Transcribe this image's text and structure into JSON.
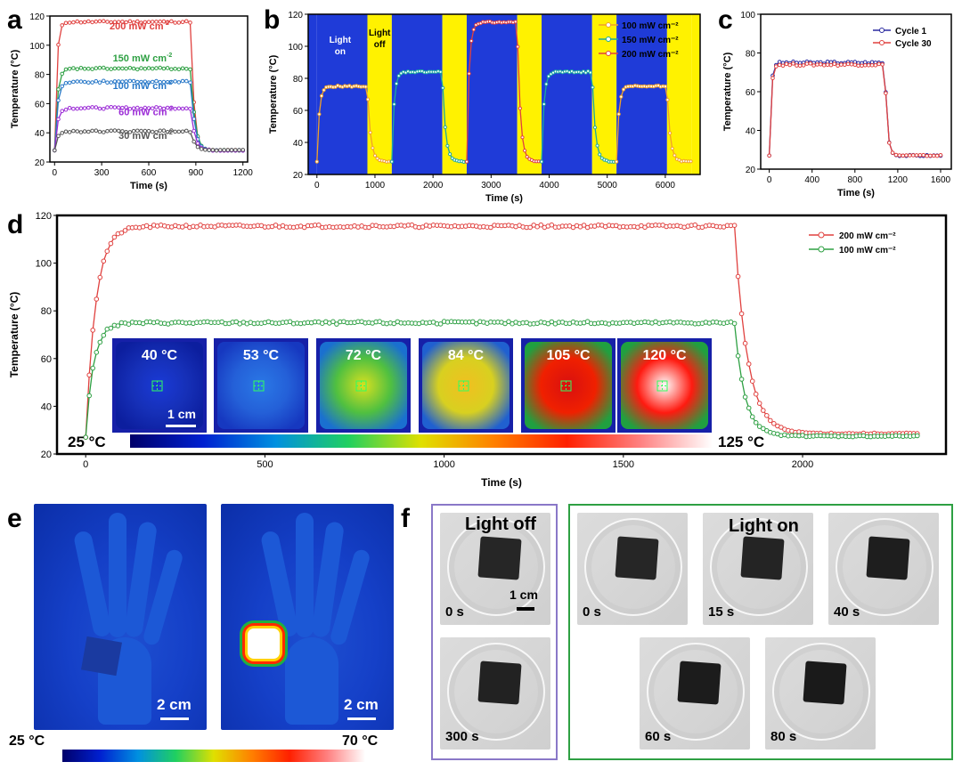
{
  "panels": {
    "a": "a",
    "b": "b",
    "c": "c",
    "d": "d",
    "e": "e",
    "f": "f"
  },
  "colors": {
    "red": "#e0413f",
    "green": "#2ea043",
    "blue": "#2878c8",
    "purple": "#9b2bd6",
    "gray": "#555555",
    "orange": "#f0a02a",
    "teal": "#1aa9a0",
    "navy": "#2a2aa0",
    "bg_blue": "#1f3bd8",
    "bg_yellow": "#fff200",
    "frame_purple": "#8a78c8",
    "frame_green": "#2ea043"
  },
  "chart_data": [
    {
      "id": "a",
      "type": "line",
      "xlabel": "Time (s)",
      "ylabel": "Temperature (°C)",
      "xlim": [
        -30,
        1230
      ],
      "ylim": [
        20,
        120
      ],
      "xticks": [
        0,
        300,
        600,
        900,
        1200
      ],
      "yticks": [
        20,
        40,
        60,
        80,
        100,
        120
      ],
      "series": [
        {
          "name": "200 mW cm⁻²",
          "color": "#e0413f",
          "plateau": 116,
          "start": 28,
          "end": 28
        },
        {
          "name": "150 mW cm⁻²",
          "color": "#2ea043",
          "plateau": 84,
          "start": 28,
          "end": 28
        },
        {
          "name": "100 mW cm⁻²",
          "color": "#2878c8",
          "plateau": 75,
          "start": 28,
          "end": 28
        },
        {
          "name": "60 mW cm⁻²",
          "color": "#9b2bd6",
          "plateau": 57,
          "start": 28,
          "end": 28
        },
        {
          "name": "30 mW cm⁻²",
          "color": "#555555",
          "plateau": 41,
          "start": 28,
          "end": 28
        }
      ],
      "off_time": 870,
      "labels": [
        {
          "text": "200 mW cm",
          "sup": "-2",
          "color": "#e0413f",
          "x": 540,
          "y": 111
        },
        {
          "text": "150 mW cm",
          "sup": "-2",
          "color": "#2ea043",
          "x": 560,
          "y": 89
        },
        {
          "text": "100 mW cm",
          "sup": "-2",
          "color": "#2878c8",
          "x": 560,
          "y": 70
        },
        {
          "text": "60 mW cm",
          "sup": "-2",
          "color": "#9b2bd6",
          "x": 580,
          "y": 52
        },
        {
          "text": "30 mW cm",
          "sup": "-2",
          "color": "#555555",
          "x": 580,
          "y": 36
        }
      ]
    },
    {
      "id": "b",
      "type": "line",
      "xlabel": "Time (s)",
      "ylabel": "Temperature (°C)",
      "xlim": [
        -150,
        6600
      ],
      "ylim": [
        20,
        120
      ],
      "xticks": [
        0,
        1000,
        2000,
        3000,
        4000,
        5000,
        6000
      ],
      "yticks": [
        20,
        40,
        60,
        80,
        100,
        120
      ],
      "cycles": [
        {
          "on": [
            0,
            870
          ],
          "off": [
            870,
            1290
          ],
          "peak": 75,
          "color": "#f0a02a"
        },
        {
          "on": [
            1290,
            2160
          ],
          "off": [
            2160,
            2580
          ],
          "peak": 84,
          "color": "#1aa9a0"
        },
        {
          "on": [
            2580,
            3450
          ],
          "off": [
            3450,
            3870
          ],
          "peak": 115,
          "color": "#e0413f"
        },
        {
          "on": [
            3870,
            4740
          ],
          "off": [
            4740,
            5160
          ],
          "peak": 84,
          "color": "#1aa9a0"
        },
        {
          "on": [
            5160,
            6030
          ],
          "off": [
            6030,
            6450
          ],
          "peak": 75,
          "color": "#f0a02a"
        }
      ],
      "light_on": "Light on",
      "light_off": "Light off",
      "legend": [
        "100 mW cm⁻²",
        "150 mW cm⁻²",
        "200 mW cm⁻²"
      ],
      "legend_colors": [
        "#f0a02a",
        "#1aa9a0",
        "#e0413f"
      ]
    },
    {
      "id": "c",
      "type": "line",
      "xlabel": "Time (s)",
      "ylabel": "Temperature (°C)",
      "xlim": [
        -80,
        1700
      ],
      "ylim": [
        20,
        100
      ],
      "xticks": [
        0,
        400,
        800,
        1200,
        1600
      ],
      "yticks": [
        20,
        40,
        60,
        80,
        100
      ],
      "series": [
        {
          "name": "Cycle 1",
          "color": "#2a2aa0",
          "plateau": 75
        },
        {
          "name": "Cycle 30",
          "color": "#e0413f",
          "plateau": 74
        }
      ],
      "off_time": 1080
    },
    {
      "id": "d",
      "type": "line",
      "xlabel": "Time (s)",
      "ylabel": "Temperature (°C)",
      "xlim": [
        -80,
        2400
      ],
      "ylim": [
        20,
        120
      ],
      "xticks": [
        0,
        500,
        1000,
        1500,
        2000
      ],
      "yticks": [
        20,
        40,
        60,
        80,
        100,
        120
      ],
      "series": [
        {
          "name": "200 mW cm⁻²",
          "color": "#e0413f",
          "plateau": 115.5
        },
        {
          "name": "100 mW cm⁻²",
          "color": "#2ea043",
          "plateau": 75
        }
      ],
      "off_time": 1810,
      "thermal_labels": [
        "40 °C",
        "53 °C",
        "72 °C",
        "84 °C",
        "105 °C",
        "120 °C"
      ],
      "scale_bar": "1 cm",
      "colorbar_min": "25 °C",
      "colorbar_max": "125 °C"
    }
  ],
  "panel_e": {
    "scale_bar": "2 cm",
    "colorbar_min": "25 °C",
    "colorbar_max": "70 °C"
  },
  "panel_f": {
    "light_off": "Light off",
    "light_on": "Light on",
    "scale_bar": "1 cm",
    "times_off": [
      "0 s",
      "300 s"
    ],
    "times_on": [
      "0 s",
      "15 s",
      "40 s",
      "60 s",
      "80 s"
    ]
  }
}
